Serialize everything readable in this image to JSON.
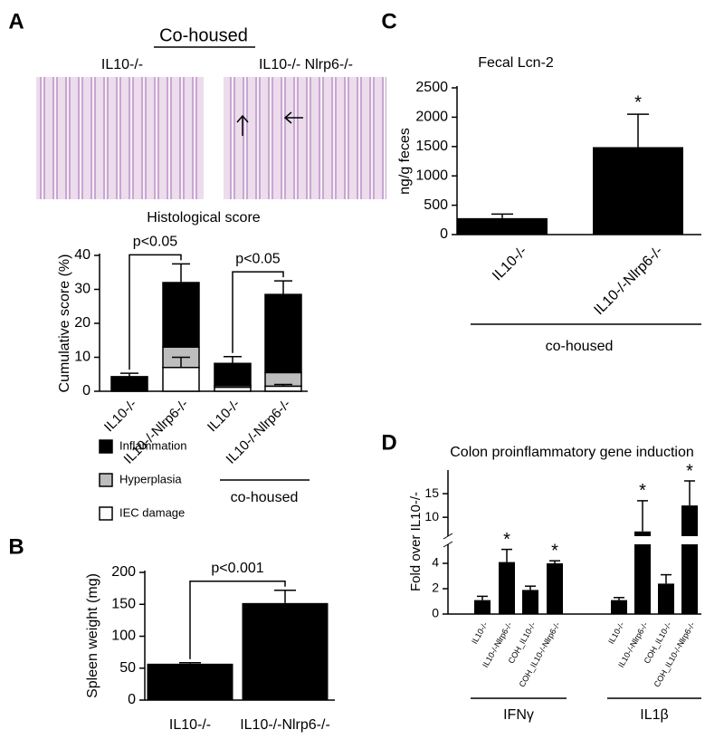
{
  "chart_data": [
    {
      "panel": "A",
      "type": "stacked_bar",
      "title": "Co-housed",
      "image_labels": [
        "IL10-/-",
        "IL10-/- Nlrp6-/-"
      ],
      "subtitle": "Histological score",
      "y_label": "Cumulative score (%)",
      "categories": [
        "IL10-/-",
        "IL10-/-Nlrp6-/-",
        "IL10-/-",
        "IL10-/-Nlrp6-/-"
      ],
      "series": [
        {
          "name": "Inflammation",
          "color": "#000000",
          "values": [
            4.3,
            19,
            6.5,
            23
          ],
          "errors": [
            1,
            5.5,
            2,
            4
          ]
        },
        {
          "name": "Hyperplasia",
          "color": "#bdbdbd",
          "values": [
            0,
            6,
            0.5,
            4
          ]
        },
        {
          "name": "IEC damage",
          "color": "#ffffff",
          "values": [
            0,
            7,
            1.2,
            1.5
          ],
          "errors": [
            null,
            3,
            null,
            0.5
          ]
        }
      ],
      "ylim": [
        0,
        40
      ],
      "yticks": [
        0,
        10,
        20,
        30,
        40
      ],
      "comparisons": [
        {
          "label": "p<0.05",
          "pair": [
            0,
            1
          ]
        },
        {
          "label": "p<0.05",
          "pair": [
            2,
            3
          ]
        }
      ],
      "group_label": "co-housed"
    },
    {
      "panel": "B",
      "type": "bar",
      "y_label": "Spleen weight (mg)",
      "categories": [
        "IL10-/-",
        "IL10-/-Nlrp6-/-"
      ],
      "values": [
        57,
        152
      ],
      "errors": [
        1.5,
        20
      ],
      "color": "#000000",
      "ylim": [
        0,
        200
      ],
      "yticks": [
        0,
        50,
        100,
        150,
        200
      ],
      "comparisons": [
        {
          "label": "p<0.001",
          "pair": [
            0,
            1
          ]
        }
      ]
    },
    {
      "panel": "C",
      "type": "bar",
      "title": "Fecal Lcn-2",
      "y_label": "ng/g feces",
      "categories": [
        "IL10-/-",
        "IL10-/-Nlrp6-/-"
      ],
      "values": [
        280,
        1490
      ],
      "errors": [
        70,
        560
      ],
      "color": "#000000",
      "ylim": [
        0,
        2500
      ],
      "yticks": [
        0,
        500,
        1000,
        1500,
        2000,
        2500
      ],
      "value_annotations": [
        null,
        "*"
      ],
      "group_label": "co-housed"
    },
    {
      "panel": "D",
      "type": "grouped_bar_broken",
      "title": "Colon proinflammatory gene induction",
      "y_label": "Fold over IL10-/-",
      "categories": [
        "IL10-/-",
        "IL10-/-Nlrp6-/-",
        "COH_IL10-/-",
        "COH_IL10-/-Nlrp6-/-"
      ],
      "color": "#000000",
      "groups": [
        {
          "name": "IFNγ",
          "values": [
            1.1,
            4.1,
            1.9,
            4.0
          ],
          "errors": [
            0.3,
            1.0,
            0.3,
            0.2
          ],
          "value_annotations": [
            null,
            "*",
            null,
            "*"
          ]
        },
        {
          "name": "IL1β",
          "values": [
            1.1,
            7,
            2.4,
            12.5
          ],
          "errors": [
            0.2,
            6.5,
            0.7,
            5.2
          ],
          "value_annotations": [
            null,
            "*",
            null,
            "*"
          ]
        }
      ],
      "segments": [
        {
          "ylim": [
            0,
            5.5
          ],
          "yticks": [
            0,
            2,
            4
          ]
        },
        {
          "ylim": [
            6,
            20
          ],
          "yticks": [
            10,
            15
          ]
        }
      ]
    }
  ]
}
